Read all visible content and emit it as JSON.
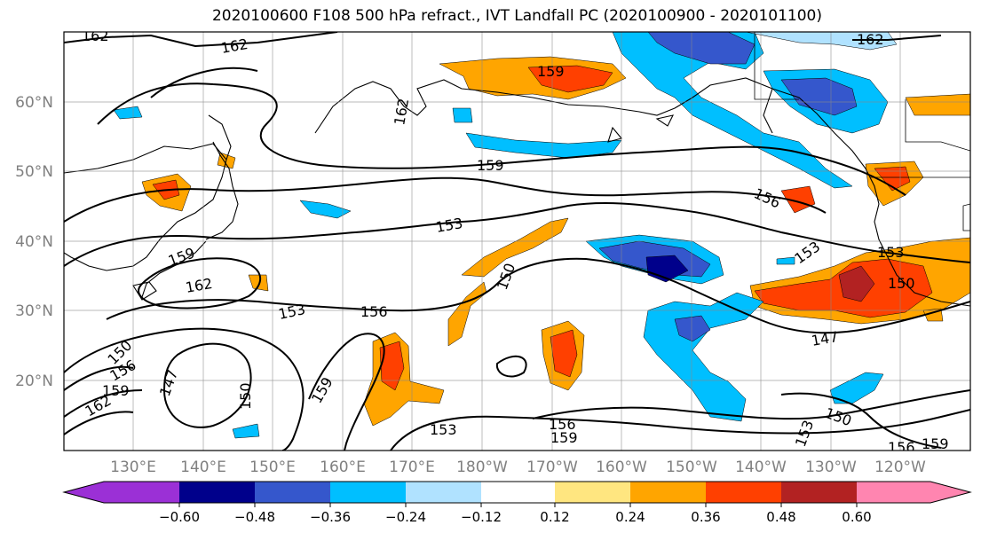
{
  "title": "2020100600 F108 500 hPa refract., IVT Landfall PC (2020100900 - 2020101100)",
  "lat_labels": [
    "60°N",
    "50°N",
    "40°N",
    "30°N",
    "20°N"
  ],
  "lon_labels": [
    "130°E",
    "140°E",
    "150°E",
    "160°E",
    "170°E",
    "180°W",
    "170°W",
    "160°W",
    "150°W",
    "140°W",
    "130°W",
    "120°W"
  ],
  "colorbar": {
    "tick_labels": [
      "−0.60",
      "−0.48",
      "−0.36",
      "−0.24",
      "−0.12",
      "0.12",
      "0.24",
      "0.36",
      "0.48",
      "0.60"
    ],
    "colors": [
      "#9b30d6",
      "#00008b",
      "#3557cc",
      "#00bfff",
      "#b0e2ff",
      "#ffffff",
      "#ffe680",
      "#ffa500",
      "#ff4000",
      "#b22222",
      "#ff85b0"
    ]
  },
  "contour_labels": [
    "162",
    "159",
    "156",
    "153",
    "150",
    "147",
    "162",
    "159",
    "153",
    "156",
    "150",
    "153",
    "156",
    "159",
    "147",
    "150",
    "153",
    "159",
    "156",
    "162",
    "150",
    "159",
    "153",
    "150",
    "156",
    "147",
    "153",
    "156",
    "159",
    "153",
    "156",
    "153",
    "159",
    "150"
  ]
}
